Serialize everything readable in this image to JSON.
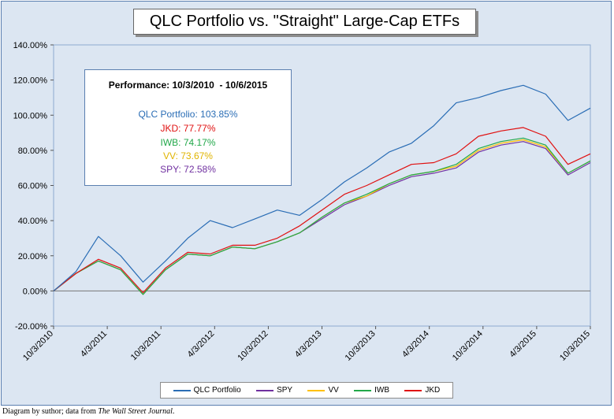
{
  "title": "QLC Portfolio vs. \"Straight\" Large-Cap ETFs",
  "performance_box": {
    "heading": "Performance: 10/3/2010  - 10/6/2015",
    "lines": [
      {
        "text": "QLC Portfolio: 103.85%",
        "color": "#2a6db5"
      },
      {
        "text": "JKD: 77.77%",
        "color": "#e01010"
      },
      {
        "text": "IWB: 74.17%",
        "color": "#22a84a"
      },
      {
        "text": "VV: 73.67%",
        "color": "#e0b400"
      },
      {
        "text": "SPY: 72.58%",
        "color": "#7030a0"
      }
    ]
  },
  "footnote": {
    "prefix": "Diagram by suthor; data from ",
    "source": "The Wall Street Journal",
    "suffix": "."
  },
  "chart_data": {
    "type": "line",
    "title": "QLC Portfolio vs. \"Straight\" Large-Cap ETFs",
    "xlabel": "",
    "ylabel": "",
    "ylim": [
      -0.2,
      1.4
    ],
    "y_ticks": [
      "-20.00%",
      "0.00%",
      "20.00%",
      "40.00%",
      "60.00%",
      "80.00%",
      "100.00%",
      "120.00%",
      "140.00%"
    ],
    "x_ticks": [
      "10/3/2010",
      "4/3/2011",
      "10/3/2011",
      "4/3/2012",
      "10/3/2012",
      "4/3/2013",
      "10/3/2013",
      "4/3/2014",
      "10/3/2014",
      "4/3/2015",
      "10/3/2015"
    ],
    "grid": false,
    "legend_position": "bottom",
    "series": [
      {
        "name": "QLC Portfolio",
        "color": "#2a6db5",
        "values": [
          0,
          0.11,
          0.31,
          0.2,
          0.05,
          0.17,
          0.3,
          0.4,
          0.36,
          0.41,
          0.46,
          0.43,
          0.52,
          0.62,
          0.7,
          0.79,
          0.84,
          0.94,
          1.07,
          1.1,
          1.14,
          1.17,
          1.12,
          0.97,
          1.04
        ]
      },
      {
        "name": "SPY",
        "color": "#7030a0",
        "values": [
          0,
          0.1,
          0.17,
          0.12,
          -0.02,
          0.12,
          0.21,
          0.2,
          0.25,
          0.24,
          0.28,
          0.33,
          0.41,
          0.49,
          0.54,
          0.6,
          0.65,
          0.67,
          0.7,
          0.79,
          0.83,
          0.85,
          0.81,
          0.66,
          0.73
        ]
      },
      {
        "name": "VV",
        "color": "#ffc000",
        "values": [
          0,
          0.1,
          0.17,
          0.12,
          -0.02,
          0.12,
          0.21,
          0.2,
          0.25,
          0.24,
          0.28,
          0.33,
          0.42,
          0.5,
          0.54,
          0.61,
          0.66,
          0.68,
          0.71,
          0.8,
          0.84,
          0.86,
          0.82,
          0.67,
          0.74
        ]
      },
      {
        "name": "IWB",
        "color": "#22a84a",
        "values": [
          0,
          0.1,
          0.17,
          0.12,
          -0.02,
          0.12,
          0.21,
          0.2,
          0.25,
          0.24,
          0.28,
          0.33,
          0.42,
          0.5,
          0.55,
          0.61,
          0.66,
          0.68,
          0.72,
          0.81,
          0.85,
          0.87,
          0.83,
          0.67,
          0.74
        ]
      },
      {
        "name": "JKD",
        "color": "#e01010",
        "values": [
          0,
          0.1,
          0.18,
          0.13,
          -0.01,
          0.13,
          0.22,
          0.21,
          0.26,
          0.26,
          0.3,
          0.37,
          0.46,
          0.55,
          0.6,
          0.66,
          0.72,
          0.73,
          0.78,
          0.88,
          0.91,
          0.93,
          0.88,
          0.72,
          0.78
        ]
      }
    ]
  }
}
